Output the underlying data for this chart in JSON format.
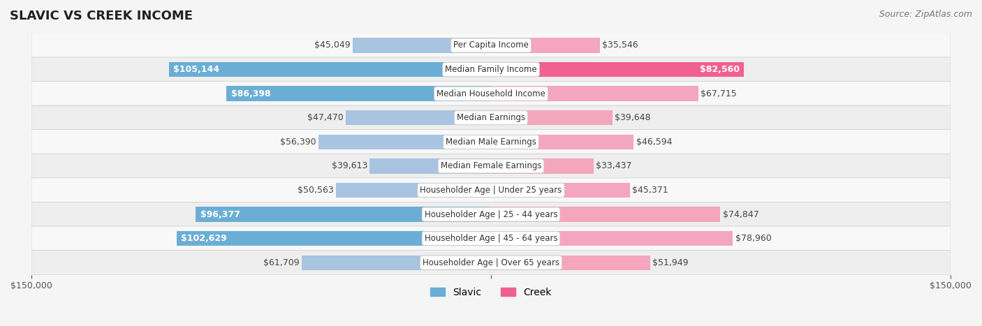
{
  "title": "SLAVIC VS CREEK INCOME",
  "source": "Source: ZipAtlas.com",
  "categories": [
    "Per Capita Income",
    "Median Family Income",
    "Median Household Income",
    "Median Earnings",
    "Median Male Earnings",
    "Median Female Earnings",
    "Householder Age | Under 25 years",
    "Householder Age | 25 - 44 years",
    "Householder Age | 45 - 64 years",
    "Householder Age | Over 65 years"
  ],
  "slavic_values": [
    45049,
    105144,
    86398,
    47470,
    56390,
    39613,
    50563,
    96377,
    102629,
    61709
  ],
  "creek_values": [
    35546,
    82560,
    67715,
    39648,
    46594,
    33437,
    45371,
    74847,
    78960,
    51949
  ],
  "slavic_labels": [
    "$45,049",
    "$105,144",
    "$86,398",
    "$47,470",
    "$56,390",
    "$39,613",
    "$50,563",
    "$96,377",
    "$102,629",
    "$61,709"
  ],
  "creek_labels": [
    "$35,546",
    "$82,560",
    "$67,715",
    "$39,648",
    "$46,594",
    "$33,437",
    "$45,371",
    "$74,847",
    "$78,960",
    "$51,949"
  ],
  "slavic_color_light": "#a8c4e0",
  "slavic_color_dark": "#6aaed6",
  "creek_color_light": "#f4a6be",
  "creek_color_dark": "#f06090",
  "label_threshold": 80000,
  "x_max": 150000,
  "background_color": "#f0f0f0",
  "row_bg_color": "#f8f8f8",
  "row_alt_color": "#eeeeee",
  "center_label_bg": "#ffffff",
  "center_label_border": "#cccccc",
  "title_fontsize": 13,
  "source_fontsize": 9,
  "bar_label_fontsize": 9,
  "category_fontsize": 8.5,
  "legend_fontsize": 10,
  "axis_label_fontsize": 9
}
